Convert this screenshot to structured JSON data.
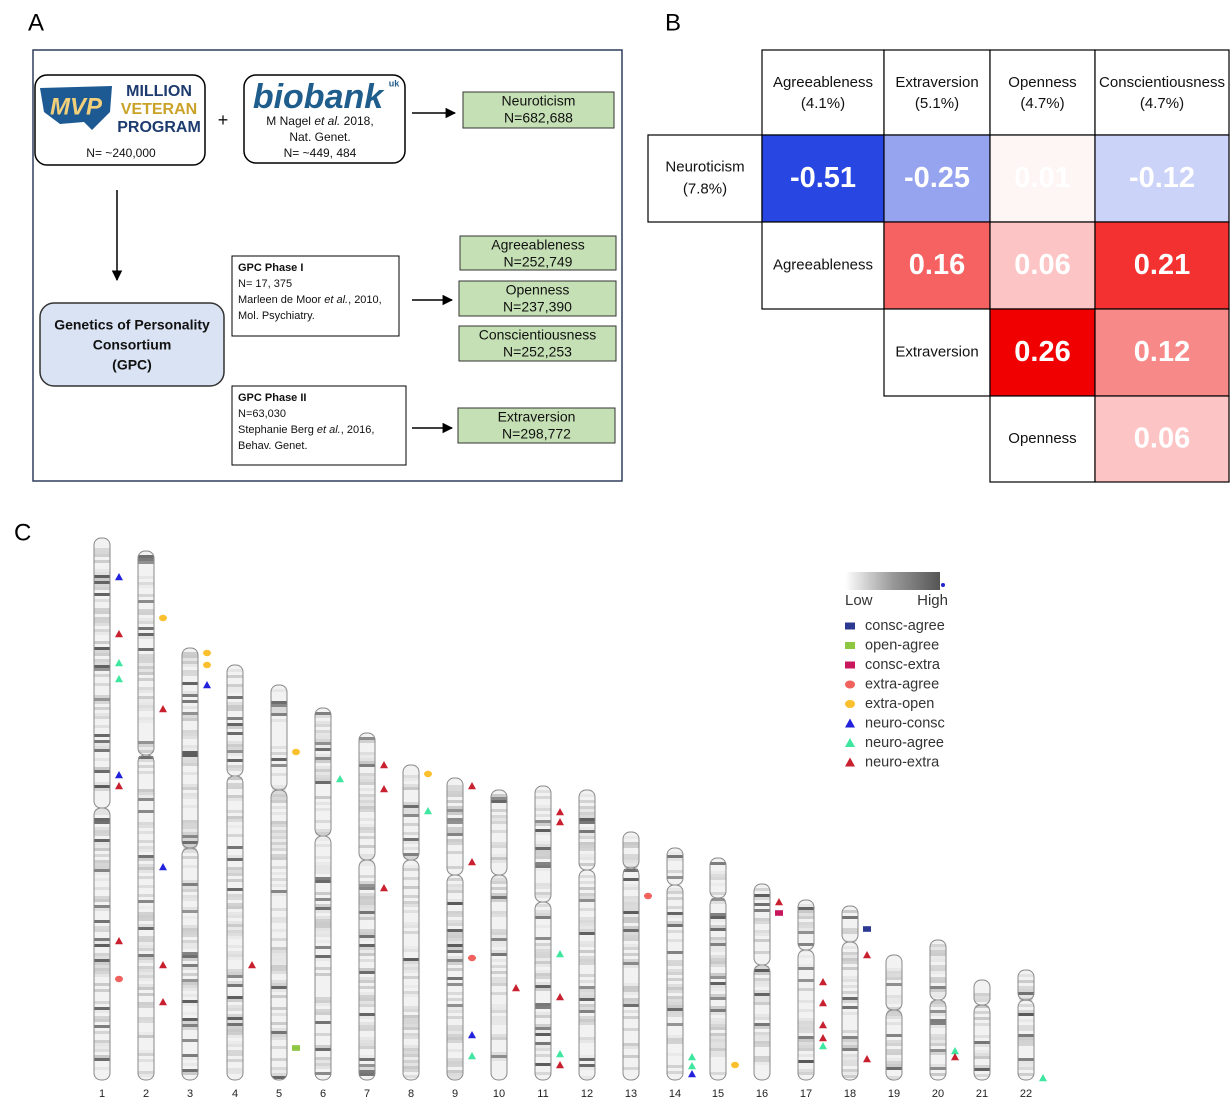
{
  "panels": {
    "a": "A",
    "b": "B",
    "c": "C"
  },
  "diagram": {
    "mvp": {
      "logo_mark": "MVP",
      "logo_lines": [
        "MILLION",
        "VETERAN",
        "PROGRAM"
      ],
      "n": "N= ~240,000"
    },
    "plus": "+",
    "ukbiobank": {
      "logo": "biobank",
      "logo_sup": "uk",
      "citation": [
        [
          "M Nagel ",
          "et al.",
          " 2018,"
        ],
        [
          "Nat. Genet."
        ],
        [
          "N= ~449, 484"
        ]
      ]
    },
    "gpc": [
      "Genetics of Personality",
      "Consortium",
      "(GPC)"
    ],
    "phase1": {
      "title": "GPC  Phase I",
      "lines": [
        [
          "N= 17, 375"
        ],
        [
          "Marleen de Moor ",
          "et al.",
          ", 2010,"
        ],
        [
          "Mol. Psychiatry."
        ]
      ]
    },
    "phase2": {
      "title": "GPC Phase II",
      "lines": [
        [
          "N=63,030"
        ],
        [
          "Stephanie Berg ",
          "et al.",
          ", 2016,"
        ],
        [
          "Behav. Genet."
        ]
      ]
    },
    "outputs": [
      {
        "trait": "Neuroticism",
        "n": "N=682,688"
      },
      {
        "trait": "Agreeableness",
        "n": "N=252,749"
      },
      {
        "trait": "Openness",
        "n": "N=237,390"
      },
      {
        "trait": "Conscientiousness",
        "n": "N=252,253"
      },
      {
        "trait": "Extraversion",
        "n": "N=298,772"
      }
    ]
  },
  "matrix": {
    "columns": [
      {
        "name": "Agreeableness",
        "share": "(4.1%)"
      },
      {
        "name": "Extraversion",
        "share": "(5.1%)"
      },
      {
        "name": "Openness",
        "share": "(4.7%)"
      },
      {
        "name": "Conscientiousness",
        "share": "(4.7%)"
      }
    ],
    "rows": [
      {
        "name": "Neuroticism",
        "share": "(7.8%)",
        "values": [
          -0.51,
          -0.25,
          0.01,
          -0.12
        ]
      },
      {
        "name": "Agreeableness",
        "values": [
          0.16,
          0.06,
          0.21
        ]
      },
      {
        "name": "Extraversion",
        "values": [
          0.26,
          0.12
        ]
      },
      {
        "name": "Openness",
        "values": [
          0.06
        ]
      }
    ]
  },
  "ideogram": {
    "chromosomes": [
      1,
      2,
      3,
      4,
      5,
      6,
      7,
      8,
      9,
      10,
      11,
      12,
      13,
      14,
      15,
      16,
      17,
      18,
      19,
      20,
      21,
      22
    ],
    "gradient": {
      "low": "Low",
      "high": "High"
    },
    "legend": [
      {
        "name": "consc-agree",
        "color": "#2b3990",
        "shape": "square"
      },
      {
        "name": "open-agree",
        "color": "#8dc63f",
        "shape": "square"
      },
      {
        "name": "consc-extra",
        "color": "#c8175d",
        "shape": "square"
      },
      {
        "name": "extra-agree",
        "color": "#f0625d",
        "shape": "circle"
      },
      {
        "name": "extra-open",
        "color": "#fbc02d",
        "shape": "circle"
      },
      {
        "name": "neuro-consc",
        "color": "#2222dd",
        "shape": "triangle"
      },
      {
        "name": "neuro-agree",
        "color": "#3ee6a0",
        "shape": "triangle"
      },
      {
        "name": "neuro-extra",
        "color": "#c8202f",
        "shape": "triangle"
      }
    ]
  }
}
